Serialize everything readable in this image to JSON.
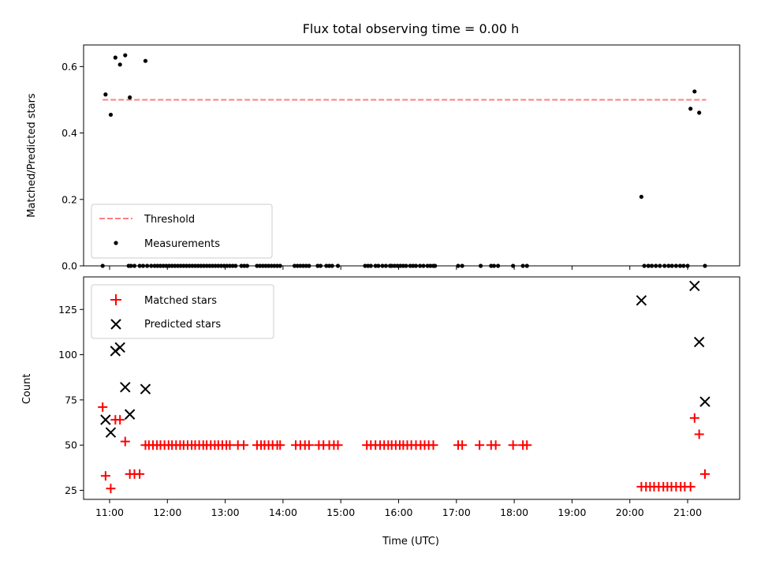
{
  "title": "Flux total observing time = 0.00 h",
  "chart_data": [
    {
      "type": "scatter",
      "ylabel": "Matched/Predicted stars",
      "xlim": [
        10.55,
        21.9
      ],
      "ylim": [
        0,
        0.665
      ],
      "yticks": [
        "0.0",
        "0.2",
        "0.4",
        "0.6"
      ],
      "ytick_values": [
        0,
        0.2,
        0.4,
        0.6
      ],
      "legend_position": "lower-left",
      "series": [
        {
          "name": "Threshold",
          "style": "dashed-line",
          "color": "#ff7f7f",
          "x": [
            10.88,
            21.32
          ],
          "y": [
            0.5,
            0.5
          ]
        },
        {
          "name": "Measurements",
          "style": "dot",
          "color": "#000000",
          "x": [
            10.88,
            10.93,
            11.02,
            11.1,
            11.18,
            11.27,
            11.35,
            11.62,
            11.33,
            11.37,
            11.43,
            11.52,
            11.58,
            11.65,
            11.72,
            11.78,
            11.83,
            11.88,
            11.93,
            11.98,
            12.03,
            12.08,
            12.13,
            12.18,
            12.23,
            12.28,
            12.33,
            12.38,
            12.43,
            12.48,
            12.53,
            12.58,
            12.63,
            12.68,
            12.73,
            12.78,
            12.83,
            12.88,
            12.93,
            12.98,
            13.03,
            13.08,
            13.13,
            13.18,
            13.28,
            13.33,
            13.38,
            13.55,
            13.6,
            13.65,
            13.7,
            13.75,
            13.8,
            13.85,
            13.9,
            13.95,
            14.2,
            14.25,
            14.3,
            14.35,
            14.4,
            14.45,
            14.6,
            14.65,
            14.75,
            14.8,
            14.85,
            14.95,
            15.42,
            15.47,
            15.52,
            15.6,
            15.65,
            15.72,
            15.78,
            15.85,
            15.88,
            15.93,
            15.98,
            16.03,
            16.08,
            16.13,
            16.2,
            16.25,
            16.3,
            16.37,
            16.43,
            16.5,
            16.55,
            16.6,
            16.63,
            17.03,
            17.1,
            17.42,
            17.6,
            17.65,
            17.72,
            17.98,
            18.15,
            18.22,
            20.2,
            20.25,
            20.32,
            20.38,
            20.45,
            20.52,
            20.6,
            20.67,
            20.73,
            20.8,
            20.87,
            20.93,
            21.0,
            21.05,
            21.12,
            21.2,
            21.3
          ],
          "y": [
            0.0,
            0.516,
            0.455,
            0.627,
            0.606,
            0.634,
            0.507,
            0.617,
            0,
            0,
            0,
            0,
            0,
            0,
            0,
            0,
            0,
            0,
            0,
            0,
            0,
            0,
            0,
            0,
            0,
            0,
            0,
            0,
            0,
            0,
            0,
            0,
            0,
            0,
            0,
            0,
            0,
            0,
            0,
            0,
            0,
            0,
            0,
            0,
            0,
            0,
            0,
            0,
            0,
            0,
            0,
            0,
            0,
            0,
            0,
            0,
            0,
            0,
            0,
            0,
            0,
            0,
            0,
            0,
            0,
            0,
            0,
            0,
            0,
            0,
            0,
            0,
            0,
            0,
            0,
            0,
            0,
            0,
            0,
            0,
            0,
            0,
            0,
            0,
            0,
            0,
            0,
            0,
            0,
            0,
            0,
            0,
            0,
            0,
            0,
            0,
            0,
            0,
            0,
            0,
            0.208,
            0,
            0,
            0,
            0,
            0,
            0,
            0,
            0,
            0,
            0,
            0,
            0,
            0.473,
            0.525,
            0.461,
            0
          ]
        }
      ]
    },
    {
      "type": "scatter",
      "ylabel": "Count",
      "xlabel": "Time (UTC)",
      "xlim": [
        10.55,
        21.9
      ],
      "ylim": [
        20,
        143
      ],
      "yticks": [
        "25",
        "50",
        "75",
        "100",
        "125"
      ],
      "ytick_values": [
        25,
        50,
        75,
        100,
        125
      ],
      "xticks": [
        "11:00",
        "12:00",
        "13:00",
        "14:00",
        "15:00",
        "16:00",
        "17:00",
        "18:00",
        "19:00",
        "20:00",
        "21:00"
      ],
      "xtick_values": [
        11,
        12,
        13,
        14,
        15,
        16,
        17,
        18,
        19,
        20,
        21
      ],
      "legend_position": "upper-left",
      "series": [
        {
          "name": "Matched stars",
          "marker": "plus",
          "color": "#ff0000",
          "x": [
            10.88,
            10.93,
            11.02,
            11.1,
            11.18,
            11.27,
            11.35,
            11.43,
            11.52,
            11.62,
            11.68,
            11.75,
            11.82,
            11.88,
            11.95,
            12.02,
            12.08,
            12.15,
            12.22,
            12.28,
            12.35,
            12.42,
            12.48,
            12.55,
            12.62,
            12.68,
            12.75,
            12.82,
            12.88,
            12.95,
            13.02,
            13.08,
            13.22,
            13.32,
            13.55,
            13.62,
            13.68,
            13.75,
            13.82,
            13.9,
            13.95,
            14.22,
            14.3,
            14.38,
            14.45,
            14.62,
            14.7,
            14.8,
            14.88,
            14.95,
            15.45,
            15.52,
            15.6,
            15.68,
            15.75,
            15.82,
            15.88,
            15.95,
            16.02,
            16.08,
            16.15,
            16.22,
            16.3,
            16.38,
            16.45,
            16.52,
            16.6,
            17.03,
            17.1,
            17.4,
            17.6,
            17.68,
            17.98,
            18.15,
            18.22,
            20.2,
            20.28,
            20.35,
            20.42,
            20.5,
            20.58,
            20.65,
            20.72,
            20.8,
            20.88,
            20.95,
            21.05,
            21.12,
            21.2,
            21.3
          ],
          "y": [
            71,
            33,
            26,
            64,
            64,
            52,
            34,
            34,
            34,
            50,
            50,
            50,
            50,
            50,
            50,
            50,
            50,
            50,
            50,
            50,
            50,
            50,
            50,
            50,
            50,
            50,
            50,
            50,
            50,
            50,
            50,
            50,
            50,
            50,
            50,
            50,
            50,
            50,
            50,
            50,
            50,
            50,
            50,
            50,
            50,
            50,
            50,
            50,
            50,
            50,
            50,
            50,
            50,
            50,
            50,
            50,
            50,
            50,
            50,
            50,
            50,
            50,
            50,
            50,
            50,
            50,
            50,
            50,
            50,
            50,
            50,
            50,
            50,
            50,
            50,
            27,
            27,
            27,
            27,
            27,
            27,
            27,
            27,
            27,
            27,
            27,
            27,
            65,
            56,
            34
          ]
        },
        {
          "name": "Predicted stars",
          "marker": "x",
          "color": "#000000",
          "x": [
            10.93,
            11.02,
            11.1,
            11.18,
            11.27,
            11.35,
            11.62,
            20.2,
            21.12,
            21.2,
            21.3
          ],
          "y": [
            64,
            57,
            102,
            104,
            82,
            67,
            81,
            130,
            138,
            107,
            74
          ]
        }
      ]
    }
  ]
}
